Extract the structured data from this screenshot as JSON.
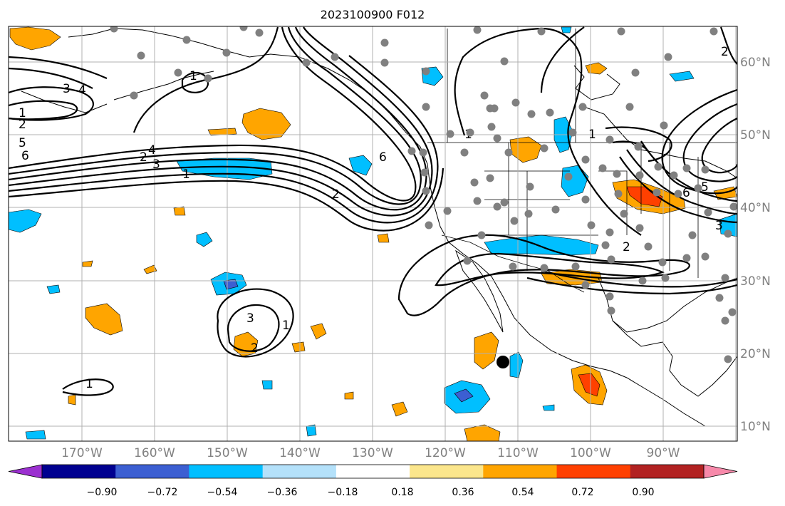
{
  "title": "2023100900 F012",
  "lon_ticks": [
    "170°W",
    "160°W",
    "150°W",
    "140°W",
    "130°W",
    "120°W",
    "110°W",
    "100°W",
    "90°W"
  ],
  "lat_ticks": [
    "60°N",
    "50°N",
    "40°N",
    "30°N",
    "20°N",
    "10°N"
  ],
  "colorbar": {
    "tick_labels": [
      "−0.90",
      "−0.72",
      "−0.54",
      "−0.36",
      "−0.18",
      "0.18",
      "0.36",
      "0.54",
      "0.72",
      "0.90"
    ],
    "colors": [
      "#9b30d0",
      "#000090",
      "#3c5fd2",
      "#00bfff",
      "#b4e1fa",
      "#ffffff",
      "#fbe68c",
      "#ffa500",
      "#ff4000",
      "#b22222",
      "#f789aa"
    ]
  },
  "contour_labels": [
    "1",
    "2",
    "3",
    "4",
    "5",
    "6",
    "1",
    "2",
    "3",
    "1",
    "2",
    "6",
    "1",
    "2",
    "3",
    "4",
    "5",
    "6",
    "1",
    "1",
    "3",
    "2",
    "1",
    "2"
  ],
  "colors": {
    "positive": "#ffa500",
    "strong_positive": "#ff4000",
    "negative": "#00bfff",
    "strong_negative": "#3c5fd2",
    "station": "#808080",
    "contour": "#000000",
    "grid": "#b0b0b0"
  }
}
